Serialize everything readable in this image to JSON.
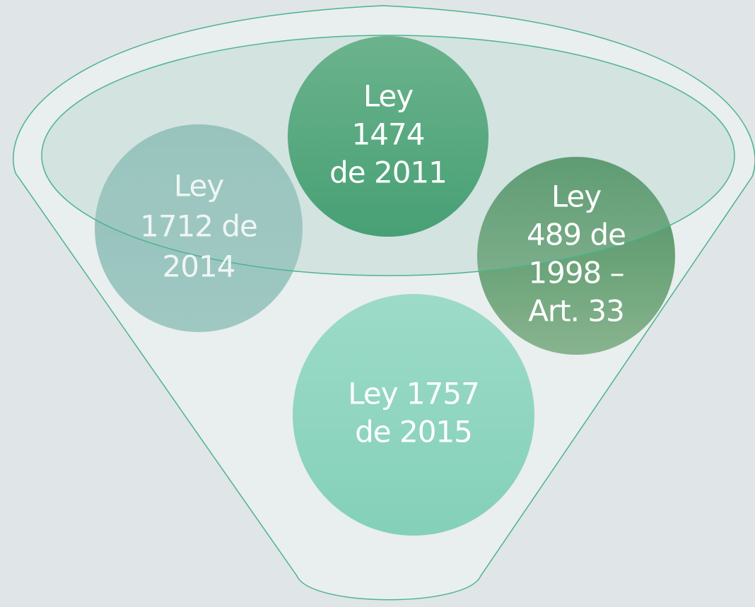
{
  "nodes": [
    {
      "lines": [
        "Ley",
        "1712 de",
        "2014"
      ]
    },
    {
      "lines": [
        "Ley",
        "1474",
        "de 2011"
      ]
    },
    {
      "lines": [
        "Ley",
        "489 de",
        "1998 –",
        "Art. 33"
      ]
    },
    {
      "lines": [
        "Ley 1757",
        "de 2015"
      ]
    }
  ]
}
